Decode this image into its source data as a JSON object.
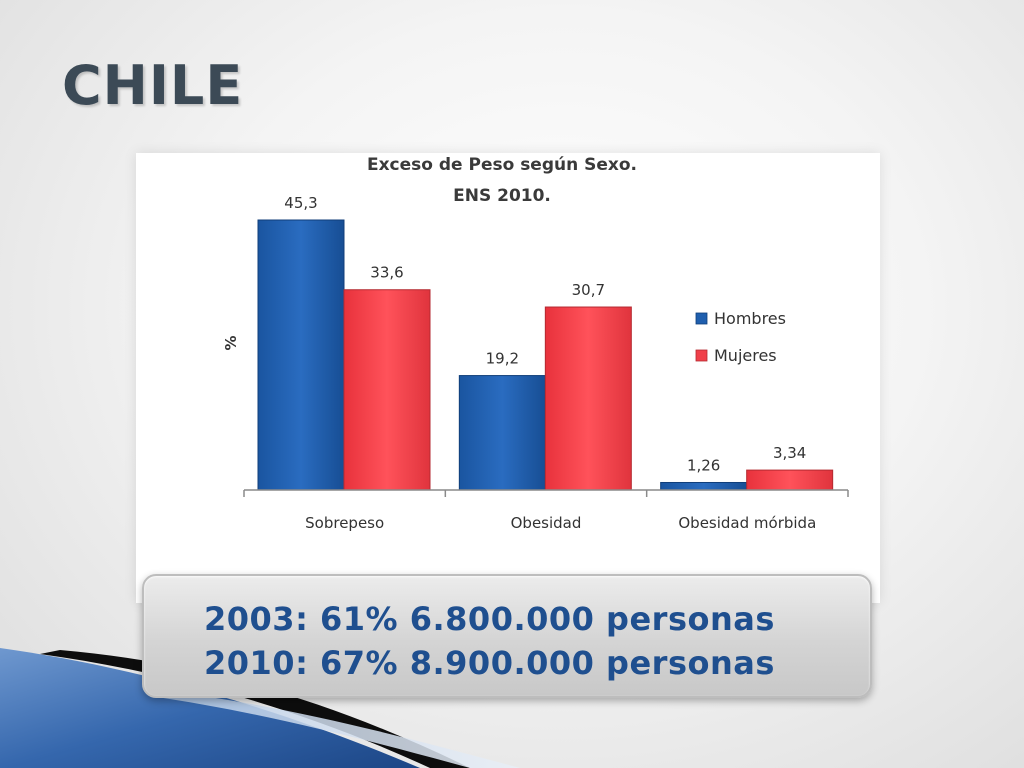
{
  "slide": {
    "title": "CHILE"
  },
  "chart_data": {
    "type": "bar",
    "title": [
      "Exceso de Peso según Sexo.",
      "ENS 2010."
    ],
    "ylabel": "%",
    "xlabel": "",
    "categories": [
      "Sobrepeso",
      "Obesidad",
      "Obesidad mórbida"
    ],
    "series": [
      {
        "name": "Hombres",
        "values": [
          45.3,
          19.2,
          1.26
        ],
        "labels": [
          "45,3",
          "19,2",
          "1,26"
        ],
        "color": "#1f5fae"
      },
      {
        "name": "Mujeres",
        "values": [
          33.6,
          30.7,
          3.34
        ],
        "labels": [
          "33,6",
          "30,7",
          "3,34"
        ],
        "color": "#f0404a"
      }
    ],
    "ylim": [
      0,
      50
    ],
    "grid": false,
    "legend_position": "right"
  },
  "stats": {
    "line1": "2003: 61% 6.800.000 personas",
    "line2": "2010: 67% 8.900.000 personas"
  }
}
